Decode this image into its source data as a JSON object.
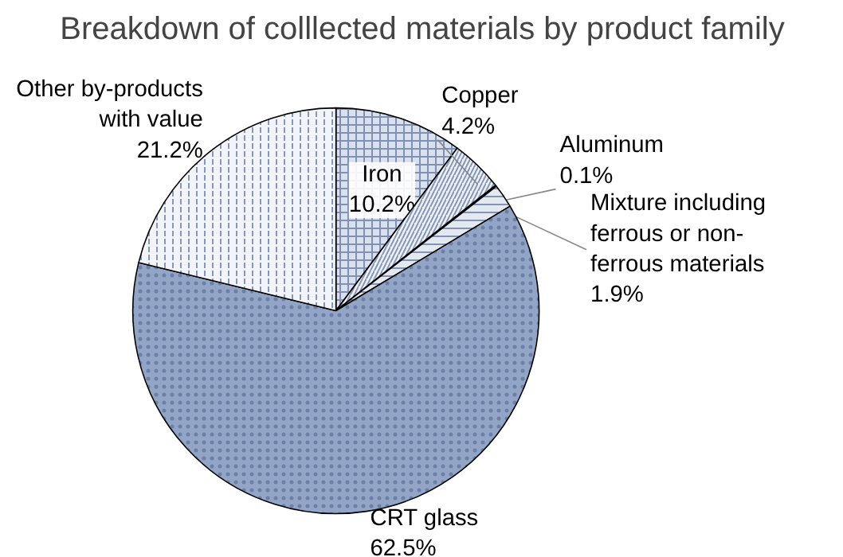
{
  "chart_data": {
    "type": "pie",
    "title": "Breakdown of colllected materials by product family",
    "categories": [
      "Iron",
      "Copper",
      "Aluminum",
      "Mixture including ferrous or non-ferrous materials",
      "CRT glass",
      "Other by-products with value"
    ],
    "values": [
      10.2,
      4.2,
      0.1,
      1.9,
      62.5,
      21.2
    ],
    "colors": [
      "#d9e0ee",
      "#eef1f7",
      "#ffffff",
      "#e3e8f1",
      "#93a5c6",
      "#f2f4f9"
    ],
    "value_labels": [
      "10.2%",
      "4.2%",
      "0.1%",
      "1.9%",
      "62.5%",
      "21.2%"
    ]
  }
}
